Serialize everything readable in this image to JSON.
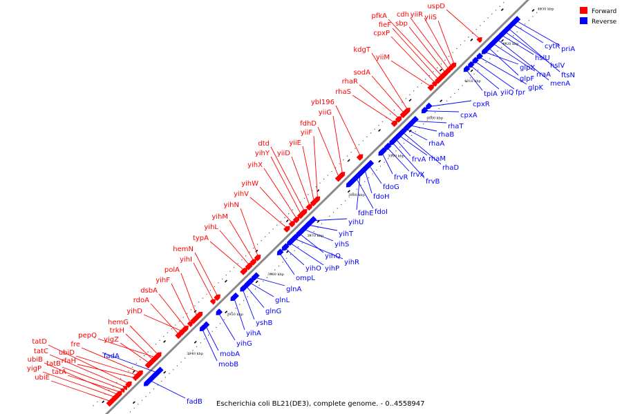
{
  "legend": {
    "forward_label": "Forward",
    "reverse_label": "Reverse",
    "forward_color": "#ff0000",
    "reverse_color": "#0000ff"
  },
  "caption": "Escherichia coli BL21(DE3), complete genome. - 0..4558947",
  "axis": {
    "kbp_labels": [
      "3940 kbp",
      "3950 kbp",
      "3960 kbp",
      "3970 kbp",
      "3980 kbp",
      "3990 kbp",
      "4000 kbp",
      "4010 kbp",
      "4020 kbp",
      "4030 kbp"
    ]
  },
  "forward_genes": [
    "ubiE",
    "yigP",
    "ubiB",
    "tatA",
    "tatB",
    "tatC",
    "tatD",
    "rfaH",
    "ubiD",
    "fre",
    "yigZ",
    "trkH",
    "pepQ",
    "hemG",
    "rdoA",
    "yihD",
    "dsbA",
    "yihF",
    "polA",
    "yihI",
    "hemN",
    "typA",
    "yihL",
    "yihM",
    "yihN",
    "yihV",
    "yihW",
    "yihX",
    "yihY",
    "dtd",
    "yiiD",
    "yiiE",
    "yiiF",
    "fdhD",
    "yiiG",
    "ybl196",
    "rhaS",
    "rhaR",
    "sodA",
    "kdgT",
    "yiiM",
    "cpxP",
    "fieF",
    "pfkA",
    "sbp",
    "cdh",
    "yiiR",
    "yiiS",
    "uspD"
  ],
  "reverse_genes": [
    "fadB",
    "fadA",
    "mobB",
    "mobA",
    "yihG",
    "yihA",
    "yshB",
    "glnG",
    "glnL",
    "glnA",
    "ompL",
    "yihO",
    "yihP",
    "yihR",
    "yihQ",
    "yihS",
    "yihT",
    "yihU",
    "fdoI",
    "fdhE",
    "fdoH",
    "fdoG",
    "frvR",
    "frvX",
    "frvB",
    "frvA",
    "rhaM",
    "rhaD",
    "rhaA",
    "rhaB",
    "rhaT",
    "cpxA",
    "cpxR",
    "tpiA",
    "yiiQ",
    "fpr",
    "glpK",
    "glpX",
    "glpF",
    "rraA",
    "menA",
    "hslU",
    "hslV",
    "ftsN",
    "cytR",
    "priA"
  ]
}
